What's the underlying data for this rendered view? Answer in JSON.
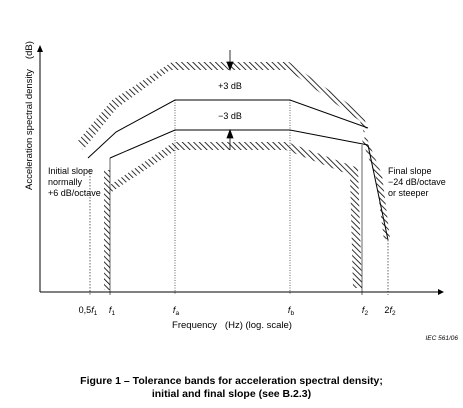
{
  "diagram": {
    "y_axis_label": "Acceleration spectral density",
    "y_axis_unit": "(dB)",
    "x_axis_label": "Frequency",
    "x_axis_unit": "(Hz) (log. scale)",
    "band_labels": {
      "upper": "+3 dB",
      "lower": "−3 dB"
    },
    "initial_slope": [
      "Initial slope",
      "normally",
      "+6 dB/octave"
    ],
    "final_slope": [
      "Final slope",
      "−24 dB/octave",
      "or steeper"
    ],
    "ticks": {
      "half_f1": {
        "coef": "0,5",
        "sym": "f",
        "sub": "1"
      },
      "f1": {
        "coef": "",
        "sym": "f",
        "sub": "1"
      },
      "fa": {
        "coef": "",
        "sym": "f",
        "sub": "a"
      },
      "fb": {
        "coef": "",
        "sym": "f",
        "sub": "b"
      },
      "f2": {
        "coef": "",
        "sym": "f",
        "sub": "2"
      },
      "two_f2": {
        "coef": "2",
        "sym": "f",
        "sub": "2"
      }
    },
    "reference": "IEC  561/06"
  },
  "caption": {
    "line1": "Figure 1 – Tolerance bands for acceleration spectral density;",
    "line2": "initial and final slope (see B.2.3)"
  }
}
